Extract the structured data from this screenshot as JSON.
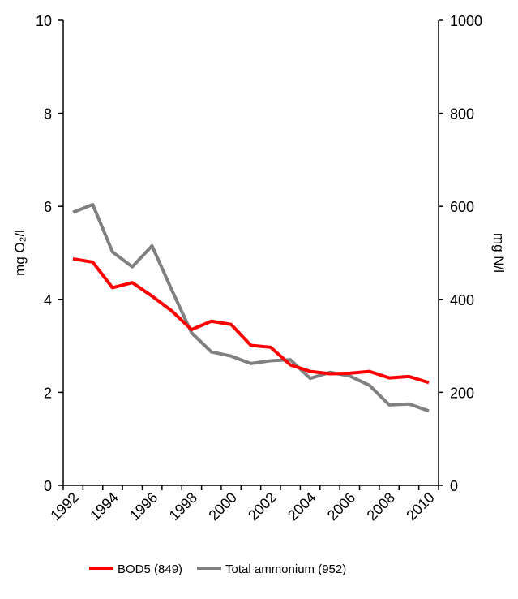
{
  "chart_data": {
    "type": "line",
    "title": "",
    "x": [
      1992,
      1993,
      1994,
      1995,
      1996,
      1997,
      1998,
      1999,
      2000,
      2001,
      2002,
      2003,
      2004,
      2005,
      2006,
      2007,
      2008,
      2009,
      2010
    ],
    "x_tick_labels": [
      "1992",
      "1994",
      "1996",
      "1998",
      "2000",
      "2002",
      "2004",
      "2006",
      "2008",
      "2010"
    ],
    "ylabel": "mg O₂/l",
    "ylim": [
      0,
      10
    ],
    "y_ticks": [
      "0",
      "2",
      "4",
      "6",
      "8",
      "10"
    ],
    "y2label": "mg N/l",
    "y2lim": [
      0,
      1000
    ],
    "y2_ticks": [
      "0",
      "200",
      "400",
      "600",
      "800",
      "1000"
    ],
    "grid": false,
    "legend_position": "bottom",
    "series": [
      {
        "name": "BOD5 (849)",
        "axis": "left",
        "color": "#ff0000",
        "values": [
          4.87,
          4.8,
          4.25,
          4.36,
          4.07,
          3.75,
          3.35,
          3.53,
          3.46,
          3.01,
          2.97,
          2.59,
          2.45,
          2.4,
          2.41,
          2.45,
          2.31,
          2.34,
          2.21
        ]
      },
      {
        "name": "Total ammonium (952)",
        "axis": "right",
        "color": "#808080",
        "values": [
          587,
          604,
          502,
          470,
          515,
          420,
          328,
          287,
          278,
          262,
          268,
          270,
          230,
          243,
          235,
          215,
          173,
          175,
          160
        ]
      }
    ]
  }
}
